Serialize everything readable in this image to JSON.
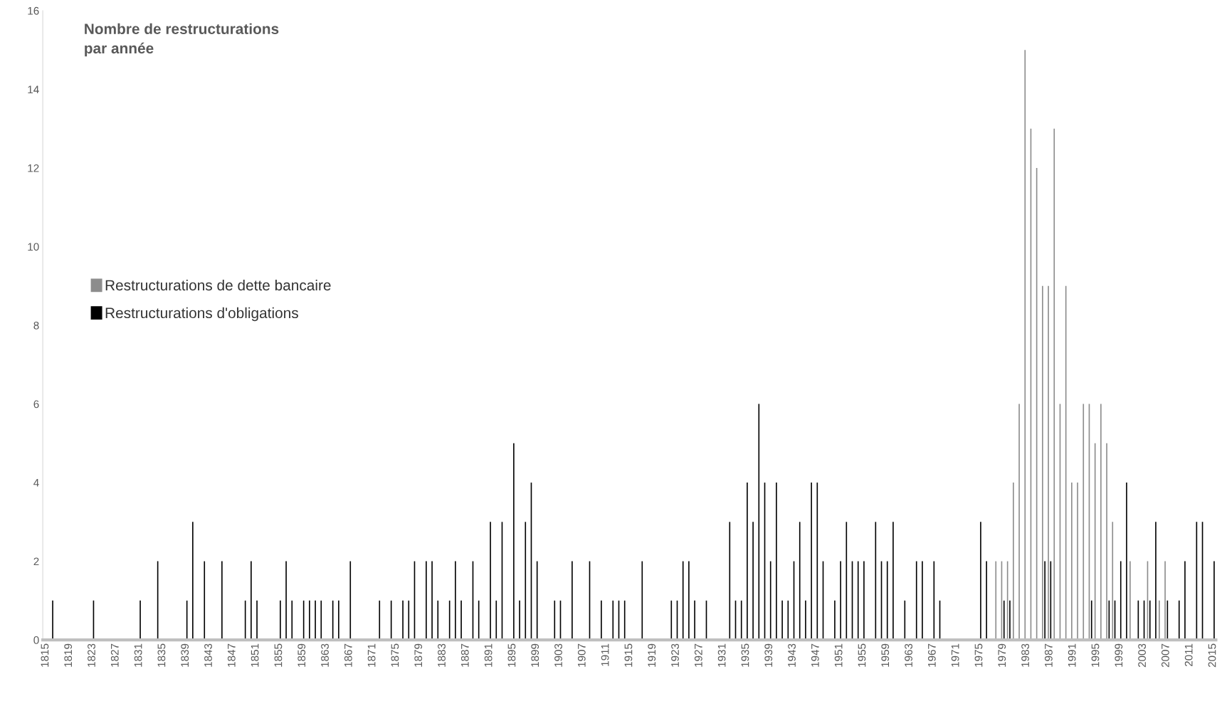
{
  "chart_data": {
    "type": "bar",
    "title": "Nombre de restructurations\npar année",
    "categories": [
      "1815",
      null,
      null,
      null,
      "1819",
      null,
      null,
      null,
      "1823",
      null,
      null,
      null,
      "1827",
      null,
      null,
      null,
      "1831",
      null,
      null,
      null,
      "1835",
      null,
      null,
      null,
      "1839",
      null,
      null,
      null,
      "1843",
      null,
      null,
      null,
      "1847",
      null,
      null,
      null,
      "1851",
      null,
      null,
      null,
      "1855",
      null,
      null,
      null,
      "1859",
      null,
      null,
      null,
      "1863",
      null,
      null,
      null,
      "1867",
      null,
      null,
      null,
      "1871",
      null,
      null,
      null,
      "1875",
      null,
      null,
      null,
      "1879",
      null,
      null,
      null,
      "1883",
      null,
      null,
      null,
      "1887",
      null,
      null,
      null,
      "1891",
      null,
      null,
      null,
      "1895",
      null,
      null,
      null,
      "1899",
      null,
      null,
      null,
      "1903",
      null,
      null,
      null,
      "1907",
      null,
      null,
      null,
      "1911",
      null,
      null,
      null,
      "1915",
      null,
      null,
      null,
      "1919",
      null,
      null,
      null,
      "1923",
      null,
      null,
      null,
      "1927",
      null,
      null,
      null,
      "1931",
      null,
      null,
      null,
      "1935",
      null,
      null,
      null,
      "1939",
      null,
      null,
      null,
      "1943",
      null,
      null,
      null,
      "1947",
      null,
      null,
      null,
      "1951",
      null,
      null,
      null,
      "1955",
      null,
      null,
      null,
      "1959",
      null,
      null,
      null,
      "1963",
      null,
      null,
      null,
      "1967",
      null,
      null,
      null,
      "1971",
      null,
      null,
      null,
      "1975",
      null,
      null,
      null,
      "1979",
      null,
      null,
      null,
      "1983",
      null,
      null,
      null,
      "1987",
      null,
      null,
      null,
      "1991",
      null,
      null,
      null,
      "1995",
      null,
      null,
      null,
      "1999",
      null,
      null,
      null,
      "2003",
      null,
      null,
      null,
      "2007",
      null,
      null,
      null,
      "2011",
      null,
      null,
      null,
      "2015"
    ],
    "series": [
      {
        "name": "Restructurations de dette bancaire",
        "color": "#8c8c8c",
        "values": [
          0,
          0,
          0,
          0,
          0,
          0,
          0,
          0,
          0,
          0,
          0,
          0,
          0,
          0,
          0,
          0,
          0,
          0,
          0,
          0,
          0,
          0,
          0,
          0,
          0,
          0,
          0,
          0,
          0,
          0,
          0,
          0,
          0,
          0,
          0,
          0,
          0,
          0,
          0,
          0,
          0,
          0,
          0,
          0,
          0,
          0,
          0,
          0,
          0,
          0,
          0,
          0,
          0,
          0,
          0,
          0,
          0,
          0,
          0,
          0,
          0,
          0,
          0,
          0,
          0,
          0,
          0,
          0,
          0,
          0,
          0,
          0,
          0,
          0,
          0,
          0,
          0,
          0,
          0,
          0,
          0,
          0,
          0,
          0,
          0,
          0,
          0,
          0,
          0,
          0,
          0,
          0,
          0,
          0,
          0,
          0,
          0,
          0,
          0,
          0,
          0,
          0,
          0,
          0,
          0,
          0,
          0,
          0,
          0,
          0,
          0,
          0,
          0,
          0,
          0,
          0,
          0,
          0,
          0,
          0,
          0,
          0,
          0,
          0,
          0,
          0,
          0,
          0,
          0,
          0,
          0,
          0,
          0,
          0,
          0,
          0,
          0,
          0,
          0,
          0,
          0,
          0,
          0,
          0,
          0,
          0,
          0,
          0,
          0,
          0,
          0,
          0,
          0,
          0,
          0,
          0,
          0,
          0,
          0,
          0,
          0,
          0,
          0,
          2,
          2,
          2,
          4,
          6,
          15,
          13,
          12,
          9,
          9,
          13,
          6,
          9,
          4,
          4,
          6,
          6,
          5,
          6,
          5,
          3,
          0,
          0,
          2,
          0,
          0,
          2,
          0,
          1,
          2,
          0,
          0,
          0,
          0,
          0,
          0,
          0,
          0
        ]
      },
      {
        "name": "Restructurations d'obligations",
        "color": "#000000",
        "values": [
          0,
          1,
          0,
          0,
          0,
          0,
          0,
          0,
          1,
          0,
          0,
          0,
          0,
          0,
          0,
          0,
          1,
          0,
          0,
          2,
          0,
          0,
          0,
          0,
          1,
          3,
          0,
          2,
          0,
          0,
          2,
          0,
          0,
          0,
          1,
          2,
          1,
          0,
          0,
          0,
          1,
          2,
          1,
          0,
          1,
          1,
          1,
          1,
          0,
          1,
          1,
          0,
          2,
          0,
          0,
          0,
          0,
          1,
          0,
          1,
          0,
          1,
          1,
          2,
          0,
          2,
          2,
          1,
          0,
          1,
          2,
          1,
          0,
          2,
          1,
          0,
          3,
          1,
          3,
          0,
          5,
          1,
          3,
          4,
          2,
          0,
          0,
          1,
          1,
          0,
          2,
          0,
          0,
          2,
          0,
          1,
          0,
          1,
          1,
          1,
          0,
          0,
          2,
          0,
          0,
          0,
          0,
          1,
          1,
          2,
          2,
          1,
          0,
          1,
          0,
          0,
          0,
          3,
          1,
          1,
          4,
          3,
          6,
          4,
          2,
          4,
          1,
          1,
          2,
          3,
          1,
          4,
          4,
          2,
          0,
          1,
          2,
          3,
          2,
          2,
          2,
          0,
          3,
          2,
          2,
          3,
          0,
          1,
          0,
          2,
          2,
          0,
          2,
          1,
          0,
          0,
          0,
          0,
          0,
          0,
          3,
          2,
          0,
          0,
          1,
          1,
          0,
          0,
          0,
          0,
          0,
          2,
          2,
          0,
          0,
          0,
          0,
          0,
          0,
          1,
          0,
          0,
          1,
          1,
          2,
          4,
          0,
          1,
          1,
          1,
          3,
          0,
          1,
          0,
          1,
          2,
          0,
          3,
          3,
          0,
          2
        ]
      }
    ],
    "ylim": [
      0,
      16
    ],
    "yticks": [
      0,
      2,
      4,
      6,
      8,
      10,
      12,
      14,
      16
    ],
    "grid": false,
    "legend": "left"
  }
}
